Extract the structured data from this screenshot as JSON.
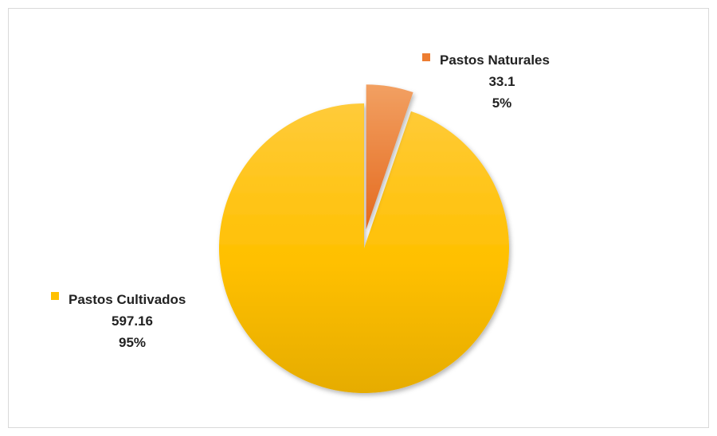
{
  "chart_data": {
    "type": "pie",
    "slices": [
      {
        "label": "Pastos Cultivados",
        "value": 597.16,
        "percent": "95%",
        "color": "#FFC000"
      },
      {
        "label": "Pastos Naturales",
        "value": 33.1,
        "percent": "5%",
        "color": "#ED7D31"
      }
    ],
    "exploded_slice": "Pastos Naturales"
  }
}
